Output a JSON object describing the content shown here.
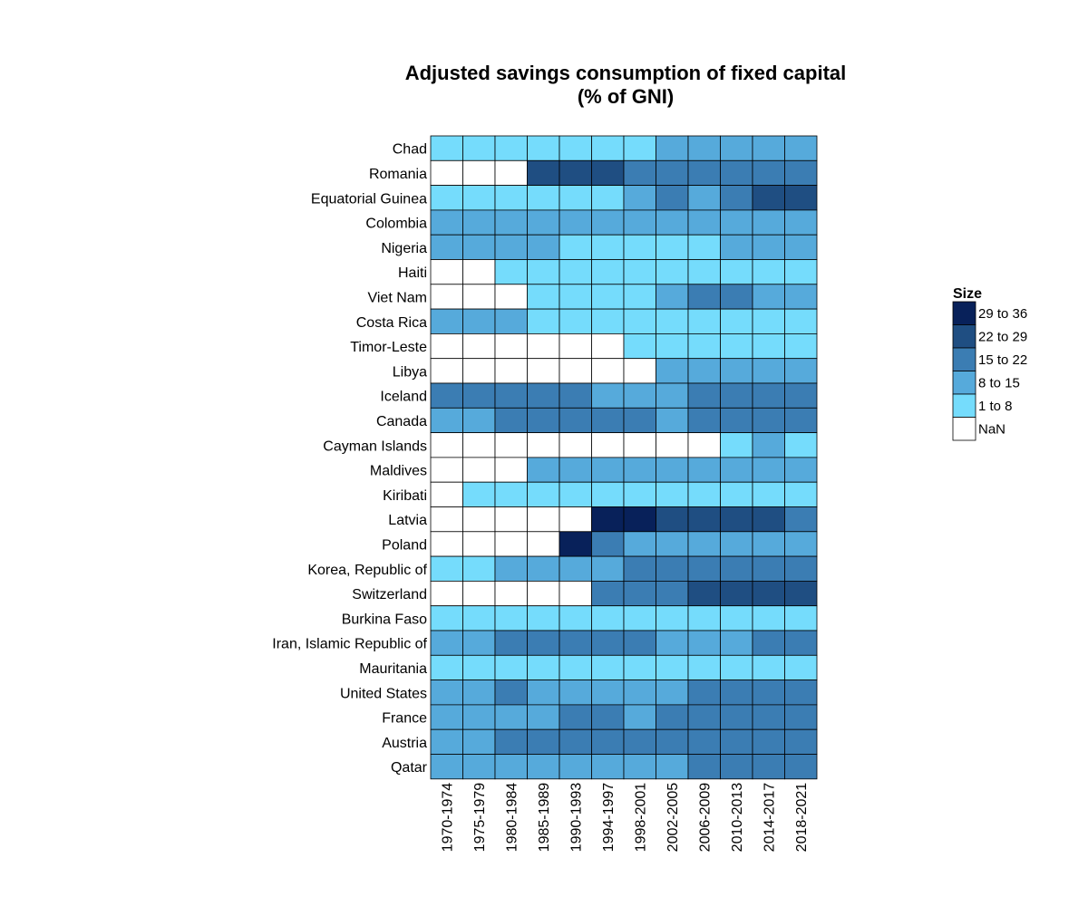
{
  "chart_data": {
    "type": "heatmap",
    "title": "Adjusted savings consumption of fixed capital",
    "subtitle": "(% of GNI)",
    "columns": [
      "1970-1974",
      "1975-1979",
      "1980-1984",
      "1985-1989",
      "1990-1993",
      "1994-1997",
      "1998-2001",
      "2002-2005",
      "2006-2009",
      "2010-2013",
      "2014-2017",
      "2018-2021"
    ],
    "rows": [
      "Chad",
      "Romania",
      "Equatorial Guinea",
      "Colombia",
      "Nigeria",
      "Haiti",
      "Viet Nam",
      "Costa Rica",
      "Timor-Leste",
      "Libya",
      "Iceland",
      "Canada",
      "Cayman Islands",
      "Maldives",
      "Kiribati",
      "Latvia",
      "Poland",
      "Korea, Republic of",
      "Switzerland",
      "Burkina Faso",
      "Iran, Islamic Republic of",
      "Mauritania",
      "United States",
      "France",
      "Austria",
      "Qatar"
    ],
    "categories_matrix": [
      [
        "1 to 8",
        "1 to 8",
        "1 to 8",
        "1 to 8",
        "1 to 8",
        "1 to 8",
        "1 to 8",
        "8 to 15",
        "8 to 15",
        "8 to 15",
        "8 to 15",
        "8 to 15"
      ],
      [
        "NaN",
        "NaN",
        "NaN",
        "22 to 29",
        "22 to 29",
        "22 to 29",
        "15 to 22",
        "15 to 22",
        "15 to 22",
        "15 to 22",
        "15 to 22",
        "15 to 22"
      ],
      [
        "1 to 8",
        "1 to 8",
        "1 to 8",
        "1 to 8",
        "1 to 8",
        "1 to 8",
        "8 to 15",
        "15 to 22",
        "8 to 15",
        "15 to 22",
        "22 to 29",
        "22 to 29"
      ],
      [
        "8 to 15",
        "8 to 15",
        "8 to 15",
        "8 to 15",
        "8 to 15",
        "8 to 15",
        "8 to 15",
        "8 to 15",
        "8 to 15",
        "8 to 15",
        "8 to 15",
        "8 to 15"
      ],
      [
        "8 to 15",
        "8 to 15",
        "8 to 15",
        "8 to 15",
        "1 to 8",
        "1 to 8",
        "1 to 8",
        "1 to 8",
        "1 to 8",
        "8 to 15",
        "8 to 15",
        "8 to 15"
      ],
      [
        "NaN",
        "NaN",
        "1 to 8",
        "1 to 8",
        "1 to 8",
        "1 to 8",
        "1 to 8",
        "1 to 8",
        "1 to 8",
        "1 to 8",
        "1 to 8",
        "1 to 8"
      ],
      [
        "NaN",
        "NaN",
        "NaN",
        "1 to 8",
        "1 to 8",
        "1 to 8",
        "1 to 8",
        "8 to 15",
        "15 to 22",
        "15 to 22",
        "8 to 15",
        "8 to 15"
      ],
      [
        "8 to 15",
        "8 to 15",
        "8 to 15",
        "1 to 8",
        "1 to 8",
        "1 to 8",
        "1 to 8",
        "1 to 8",
        "1 to 8",
        "1 to 8",
        "1 to 8",
        "1 to 8"
      ],
      [
        "NaN",
        "NaN",
        "NaN",
        "NaN",
        "NaN",
        "NaN",
        "1 to 8",
        "1 to 8",
        "1 to 8",
        "1 to 8",
        "1 to 8",
        "1 to 8"
      ],
      [
        "NaN",
        "NaN",
        "NaN",
        "NaN",
        "NaN",
        "NaN",
        "NaN",
        "8 to 15",
        "8 to 15",
        "8 to 15",
        "8 to 15",
        "8 to 15"
      ],
      [
        "15 to 22",
        "15 to 22",
        "15 to 22",
        "15 to 22",
        "15 to 22",
        "8 to 15",
        "8 to 15",
        "8 to 15",
        "15 to 22",
        "15 to 22",
        "15 to 22",
        "15 to 22"
      ],
      [
        "8 to 15",
        "8 to 15",
        "15 to 22",
        "15 to 22",
        "15 to 22",
        "15 to 22",
        "15 to 22",
        "8 to 15",
        "15 to 22",
        "15 to 22",
        "15 to 22",
        "15 to 22"
      ],
      [
        "NaN",
        "NaN",
        "NaN",
        "NaN",
        "NaN",
        "NaN",
        "NaN",
        "NaN",
        "NaN",
        "1 to 8",
        "8 to 15",
        "1 to 8"
      ],
      [
        "NaN",
        "NaN",
        "NaN",
        "8 to 15",
        "8 to 15",
        "8 to 15",
        "8 to 15",
        "8 to 15",
        "8 to 15",
        "8 to 15",
        "8 to 15",
        "8 to 15"
      ],
      [
        "NaN",
        "1 to 8",
        "1 to 8",
        "1 to 8",
        "1 to 8",
        "1 to 8",
        "1 to 8",
        "1 to 8",
        "1 to 8",
        "1 to 8",
        "1 to 8",
        "1 to 8"
      ],
      [
        "NaN",
        "NaN",
        "NaN",
        "NaN",
        "NaN",
        "29 to 36",
        "29 to 36",
        "22 to 29",
        "22 to 29",
        "22 to 29",
        "22 to 29",
        "15 to 22"
      ],
      [
        "NaN",
        "NaN",
        "NaN",
        "NaN",
        "29 to 36",
        "15 to 22",
        "8 to 15",
        "8 to 15",
        "8 to 15",
        "8 to 15",
        "8 to 15",
        "8 to 15"
      ],
      [
        "1 to 8",
        "1 to 8",
        "8 to 15",
        "8 to 15",
        "8 to 15",
        "8 to 15",
        "15 to 22",
        "15 to 22",
        "15 to 22",
        "15 to 22",
        "15 to 22",
        "15 to 22"
      ],
      [
        "NaN",
        "NaN",
        "NaN",
        "NaN",
        "NaN",
        "15 to 22",
        "15 to 22",
        "15 to 22",
        "22 to 29",
        "22 to 29",
        "22 to 29",
        "22 to 29"
      ],
      [
        "1 to 8",
        "1 to 8",
        "1 to 8",
        "1 to 8",
        "1 to 8",
        "1 to 8",
        "1 to 8",
        "1 to 8",
        "1 to 8",
        "1 to 8",
        "1 to 8",
        "1 to 8"
      ],
      [
        "8 to 15",
        "8 to 15",
        "15 to 22",
        "15 to 22",
        "15 to 22",
        "15 to 22",
        "15 to 22",
        "8 to 15",
        "8 to 15",
        "8 to 15",
        "15 to 22",
        "15 to 22"
      ],
      [
        "1 to 8",
        "1 to 8",
        "1 to 8",
        "1 to 8",
        "1 to 8",
        "1 to 8",
        "1 to 8",
        "1 to 8",
        "1 to 8",
        "1 to 8",
        "1 to 8",
        "1 to 8"
      ],
      [
        "8 to 15",
        "8 to 15",
        "15 to 22",
        "8 to 15",
        "8 to 15",
        "8 to 15",
        "8 to 15",
        "8 to 15",
        "15 to 22",
        "15 to 22",
        "15 to 22",
        "15 to 22"
      ],
      [
        "8 to 15",
        "8 to 15",
        "8 to 15",
        "8 to 15",
        "15 to 22",
        "15 to 22",
        "8 to 15",
        "15 to 22",
        "15 to 22",
        "15 to 22",
        "15 to 22",
        "15 to 22"
      ],
      [
        "8 to 15",
        "8 to 15",
        "15 to 22",
        "15 to 22",
        "15 to 22",
        "15 to 22",
        "15 to 22",
        "15 to 22",
        "15 to 22",
        "15 to 22",
        "15 to 22",
        "15 to 22"
      ],
      [
        "8 to 15",
        "8 to 15",
        "8 to 15",
        "8 to 15",
        "8 to 15",
        "8 to 15",
        "8 to 15",
        "8 to 15",
        "15 to 22",
        "15 to 22",
        "15 to 22",
        "15 to 22"
      ]
    ],
    "legend": {
      "title": "Size",
      "placement": "right",
      "items": [
        {
          "label": "29 to 36",
          "color": "#08215a"
        },
        {
          "label": "22 to 29",
          "color": "#1f4e82"
        },
        {
          "label": "15 to 22",
          "color": "#3b7db3"
        },
        {
          "label": "8 to 15",
          "color": "#56aadb"
        },
        {
          "label": "1 to 8",
          "color": "#75dcfc"
        },
        {
          "label": "NaN",
          "color": "#ffffff"
        }
      ]
    },
    "grid": false
  }
}
